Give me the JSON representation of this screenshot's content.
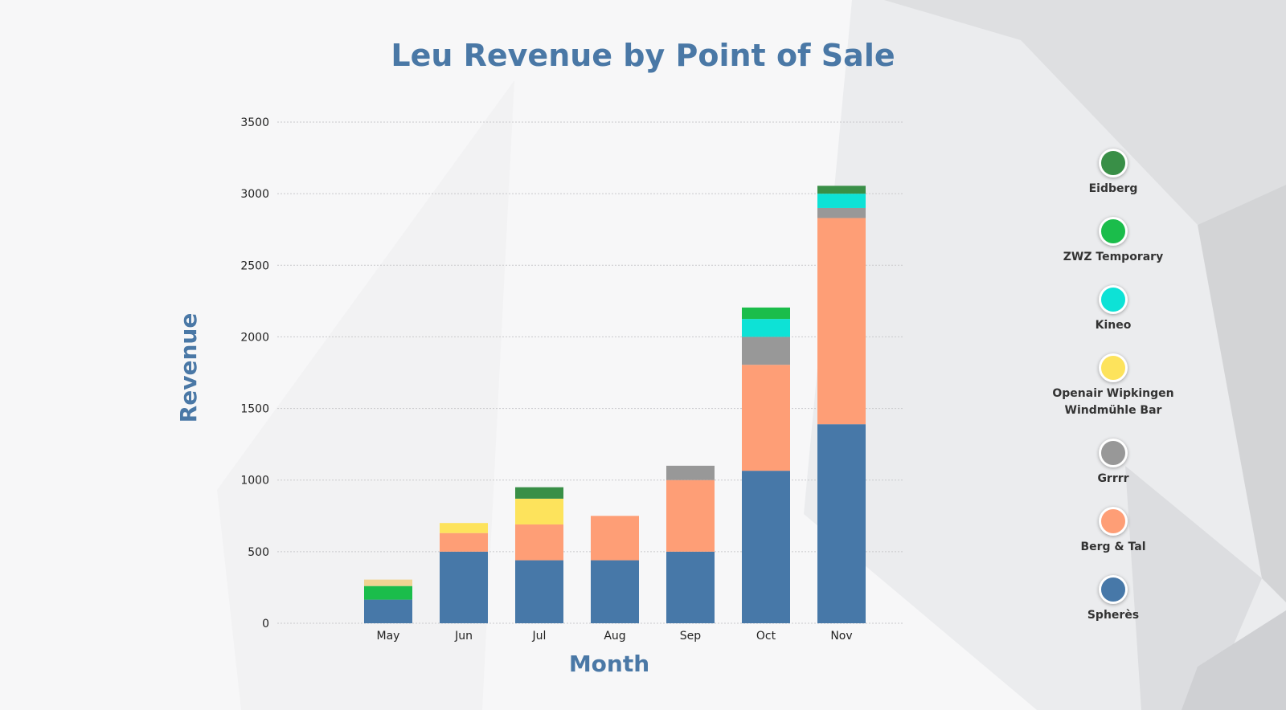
{
  "chart_data": {
    "type": "bar",
    "stacked": true,
    "title": "Leu Revenue by Point of Sale",
    "xlabel": "Month",
    "ylabel": "Revenue",
    "ylim": [
      0,
      3500
    ],
    "yticks": [
      0,
      500,
      1000,
      1500,
      2000,
      2500,
      3000,
      3500
    ],
    "grid": true,
    "legend_position": "right",
    "categories": [
      "May",
      "Jun",
      "Jul",
      "Aug",
      "Sep",
      "Oct",
      "Nov"
    ],
    "series": [
      {
        "name": "Spherès",
        "color": "#4778a8",
        "values": [
          165,
          500,
          440,
          440,
          500,
          1065,
          1390
        ]
      },
      {
        "name": "Berg & Tal",
        "color": "#fe9e76",
        "values": [
          0,
          130,
          250,
          310,
          500,
          740,
          1440
        ]
      },
      {
        "name": "Grrrr",
        "color": "#989898",
        "values": [
          0,
          0,
          0,
          0,
          100,
          195,
          70
        ]
      },
      {
        "name": "Openair Wipkingen Windmühle Bar",
        "color": "#fde35c",
        "values": [
          0,
          70,
          180,
          0,
          0,
          0,
          0
        ]
      },
      {
        "name": "Kineo",
        "color": "#0de2d6",
        "values": [
          0,
          0,
          0,
          0,
          0,
          125,
          100
        ]
      },
      {
        "name": "ZWZ Temporary",
        "color": "#1bbd4b",
        "values": [
          95,
          0,
          0,
          0,
          0,
          80,
          0
        ]
      },
      {
        "name": "Eidberg",
        "color": "#398f47",
        "values": [
          0,
          0,
          80,
          0,
          0,
          0,
          55
        ]
      },
      {
        "name": "",
        "color": "#f0d492",
        "values": [
          45,
          0,
          0,
          0,
          0,
          0,
          0
        ]
      }
    ]
  },
  "legend": [
    {
      "name": "Eidberg",
      "color": "#398f47"
    },
    {
      "name": "ZWZ Temporary",
      "color": "#1bbd4b"
    },
    {
      "name": "Kineo",
      "color": "#0de2d6"
    },
    {
      "name": "Openair Wipkingen Windmühle Bar",
      "color": "#fde35c"
    },
    {
      "name": "Grrrr",
      "color": "#989898"
    },
    {
      "name": "Berg & Tal",
      "color": "#fe9e76"
    },
    {
      "name": "Spherès",
      "color": "#4778a8"
    }
  ]
}
